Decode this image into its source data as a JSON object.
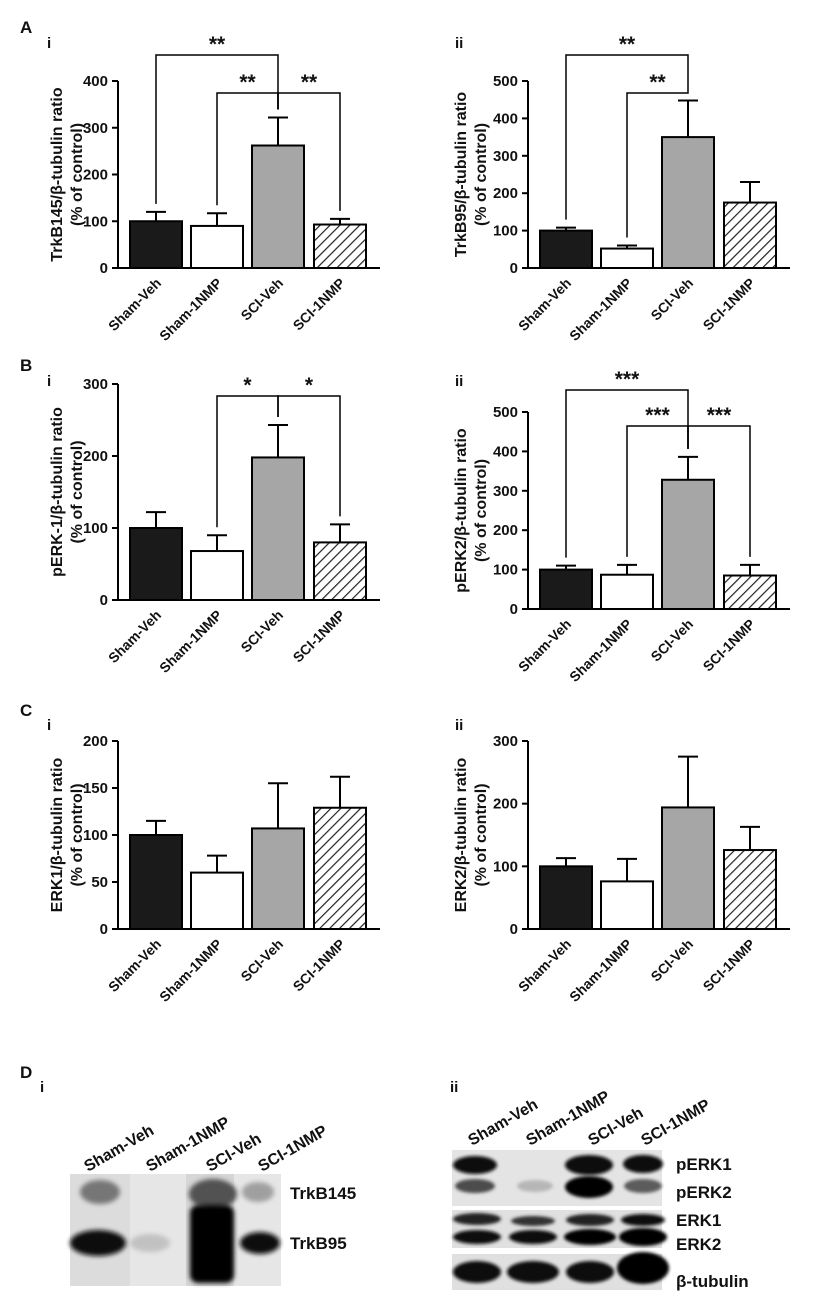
{
  "panel_letters": {
    "A": "A",
    "B": "B",
    "C": "C",
    "D": "D"
  },
  "chart_data": [
    {
      "id": "Ai",
      "panel": "A",
      "roman": "i",
      "type": "bar",
      "ylabel": "TrkB145/β-tubulin ratio",
      "ylabel2": "(% of control)",
      "categories": [
        "Sham-Veh",
        "Sham-1NMP",
        "SCI-Veh",
        "SCI-1NMP"
      ],
      "values": [
        100,
        90,
        262,
        93
      ],
      "errors": [
        20,
        27,
        60,
        12
      ],
      "ylim": [
        0,
        400
      ],
      "ticks": [
        0,
        100,
        200,
        300,
        400
      ],
      "ticklabels": [
        "0",
        "100",
        "200",
        "300",
        "400"
      ],
      "significance": [
        {
          "from": 0,
          "to": 2,
          "label": "**"
        },
        {
          "from": 1,
          "to": 2,
          "label": "**"
        },
        {
          "from": 2,
          "to": 3,
          "label": "**"
        }
      ]
    },
    {
      "id": "Aii",
      "panel": "A",
      "roman": "ii",
      "type": "bar",
      "ylabel": "TrkB95/β-tubulin ratio",
      "ylabel2": "(% of control)",
      "categories": [
        "Sham-Veh",
        "Sham-1NMP",
        "SCI-Veh",
        "SCI-1NMP"
      ],
      "values": [
        100,
        52,
        350,
        175
      ],
      "errors": [
        8,
        8,
        98,
        55
      ],
      "ylim": [
        0,
        500
      ],
      "ticks": [
        0,
        100,
        200,
        300,
        400,
        500
      ],
      "ticklabels": [
        "0",
        "100",
        "200",
        "300",
        "400",
        "500"
      ],
      "significance": [
        {
          "from": 0,
          "to": 2,
          "label": "**"
        },
        {
          "from": 1,
          "to": 2,
          "label": "**"
        }
      ]
    },
    {
      "id": "Bi",
      "panel": "B",
      "roman": "i",
      "type": "bar",
      "ylabel": "pERK-1/β-tubulin ratio",
      "ylabel2": "(% of control)",
      "categories": [
        "Sham-Veh",
        "Sham-1NMP",
        "SCI-Veh",
        "SCI-1NMP"
      ],
      "values": [
        100,
        68,
        198,
        80
      ],
      "errors": [
        22,
        22,
        45,
        25
      ],
      "ylim": [
        0,
        300
      ],
      "ticks": [
        0,
        100,
        200,
        300
      ],
      "ticklabels": [
        "0",
        "100",
        "200",
        "300"
      ],
      "significance": [
        {
          "from": 1,
          "to": 2,
          "label": "*"
        },
        {
          "from": 2,
          "to": 3,
          "label": "*"
        }
      ]
    },
    {
      "id": "Bii",
      "panel": "B",
      "roman": "ii",
      "type": "bar",
      "ylabel": "pERK2/β-tubulin ratio",
      "ylabel2": "(% of control)",
      "categories": [
        "Sham-Veh",
        "Sham-1NMP",
        "SCI-Veh",
        "SCI-1NMP"
      ],
      "values": [
        100,
        87,
        328,
        85
      ],
      "errors": [
        10,
        25,
        58,
        27
      ],
      "ylim": [
        0,
        500
      ],
      "ticks": [
        0,
        100,
        200,
        300,
        400,
        500
      ],
      "ticklabels": [
        "0",
        "100",
        "200",
        "300",
        "400",
        "500"
      ],
      "significance": [
        {
          "from": 0,
          "to": 2,
          "label": "***"
        },
        {
          "from": 1,
          "to": 2,
          "label": "***"
        },
        {
          "from": 2,
          "to": 3,
          "label": "***"
        }
      ]
    },
    {
      "id": "Ci",
      "panel": "C",
      "roman": "i",
      "type": "bar",
      "ylabel": "ERK1/β-tubulin ratio",
      "ylabel2": "(% of control)",
      "categories": [
        "Sham-Veh",
        "Sham-1NMP",
        "SCI-Veh",
        "SCI-1NMP"
      ],
      "values": [
        100,
        60,
        107,
        129
      ],
      "errors": [
        15,
        18,
        48,
        33
      ],
      "ylim": [
        0,
        200
      ],
      "ticks": [
        0,
        50,
        100,
        150,
        200
      ],
      "ticklabels": [
        "0",
        "50",
        "100",
        "150",
        "200"
      ],
      "significance": []
    },
    {
      "id": "Cii",
      "panel": "C",
      "roman": "ii",
      "type": "bar",
      "ylabel": "ERK2/β-tubulin ratio",
      "ylabel2": "(% of control)",
      "categories": [
        "Sham-Veh",
        "Sham-1NMP",
        "SCI-Veh",
        "SCI-1NMP"
      ],
      "values": [
        100,
        76,
        194,
        126
      ],
      "errors": [
        13,
        36,
        81,
        37
      ],
      "ylim": [
        0,
        300
      ],
      "ticks": [
        0,
        100,
        200,
        300
      ],
      "ticklabels": [
        "0",
        "100",
        "200",
        "300"
      ],
      "significance": []
    }
  ],
  "series_fills": [
    "#1a1a1a",
    "#ffffff",
    "#a6a6a6",
    "hatch"
  ],
  "blots": {
    "left": {
      "roman": "i",
      "lanes": [
        "Sham-Veh",
        "Sham-1NMP",
        "SCI-Veh",
        "SCI-1NMP"
      ],
      "band_labels": [
        "TrkB145",
        "TrkB95"
      ]
    },
    "right": {
      "roman": "ii",
      "lanes": [
        "Sham-Veh",
        "Sham-1NMP",
        "SCI-Veh",
        "SCI-1NMP"
      ],
      "band_labels": [
        "pERK1",
        "pERK2",
        "ERK1",
        "ERK2",
        "β-tubulin"
      ]
    }
  }
}
